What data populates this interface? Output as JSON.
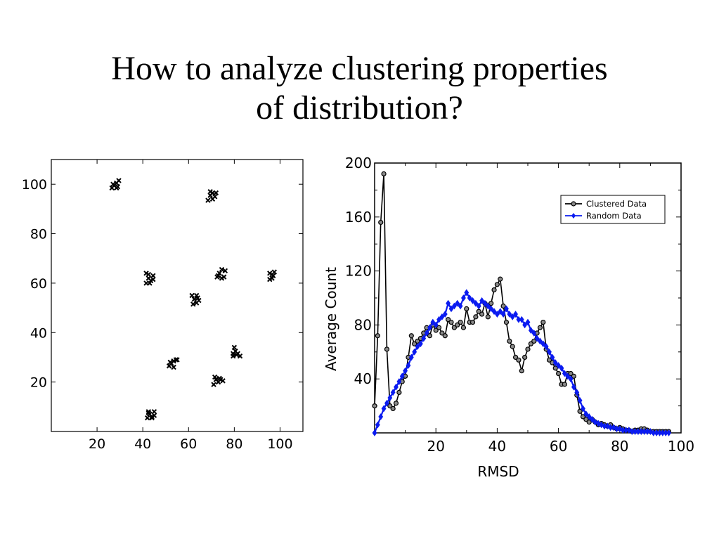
{
  "title_line1": "How to analyze clustering properties",
  "title_line2": "of distribution?",
  "chart_data": [
    {
      "type": "scatter",
      "marker": "x",
      "xlim": [
        0,
        110
      ],
      "ylim": [
        0,
        110
      ],
      "xticks": [
        20,
        40,
        60,
        80,
        100
      ],
      "yticks": [
        20,
        40,
        60,
        80,
        100
      ],
      "tick_labels_x": [
        "20",
        "40",
        "60",
        "80",
        "100"
      ],
      "tick_labels_y": [
        "20",
        "40",
        "60",
        "80",
        "100"
      ],
      "clusters": [
        {
          "center": [
            28,
            99.5
          ],
          "points": [
            [
              26.5,
              98.5
            ],
            [
              27.5,
              99.5
            ],
            [
              28.5,
              100.5
            ],
            [
              29.5,
              101.5
            ],
            [
              28.5,
              98.5
            ],
            [
              27,
              100
            ],
            [
              29,
              99
            ]
          ]
        },
        {
          "center": [
            70.5,
            95.5
          ],
          "points": [
            [
              68.5,
              93.5
            ],
            [
              69.5,
              95.5
            ],
            [
              70.5,
              96.5
            ],
            [
              71.5,
              95
            ],
            [
              70.5,
              94
            ],
            [
              72,
              96.5
            ],
            [
              69.5,
              97
            ]
          ]
        },
        {
          "center": [
            43,
            62
          ],
          "points": [
            [
              41.5,
              64
            ],
            [
              42.5,
              62
            ],
            [
              43.5,
              61
            ],
            [
              44.5,
              63
            ],
            [
              41.5,
              60
            ],
            [
              42.5,
              63.5
            ],
            [
              44.5,
              61.5
            ],
            [
              43,
              60
            ]
          ]
        },
        {
          "center": [
            74,
            64
          ],
          "points": [
            [
              72.5,
              62.5
            ],
            [
              73.5,
              64
            ],
            [
              74.5,
              65.5
            ],
            [
              75.5,
              62.5
            ],
            [
              73,
              63
            ],
            [
              76,
              65
            ],
            [
              74.5,
              62
            ]
          ]
        },
        {
          "center": [
            96.5,
            63
          ],
          "points": [
            [
              95.5,
              61.5
            ],
            [
              96.5,
              63.5
            ],
            [
              97.5,
              64.5
            ],
            [
              96.5,
              62
            ],
            [
              97,
              63
            ],
            [
              95.5,
              64
            ]
          ]
        },
        {
          "center": [
            63,
            53
          ],
          "points": [
            [
              61.5,
              55
            ],
            [
              62.5,
              53.5
            ],
            [
              63.5,
              55
            ],
            [
              64.5,
              53
            ],
            [
              62,
              51.5
            ],
            [
              63.5,
              52
            ],
            [
              64,
              54
            ]
          ]
        },
        {
          "center": [
            53,
            27.5
          ],
          "points": [
            [
              51.5,
              26.5
            ],
            [
              52.5,
              27.5
            ],
            [
              53.5,
              28.5
            ],
            [
              54.5,
              29
            ],
            [
              52,
              28
            ],
            [
              53.5,
              26
            ],
            [
              55,
              29
            ]
          ]
        },
        {
          "center": [
            80.5,
            31.5
          ],
          "points": [
            [
              79.5,
              30.5
            ],
            [
              80.5,
              32.5
            ],
            [
              81.5,
              31.5
            ],
            [
              82.5,
              30.5
            ],
            [
              80,
              34
            ],
            [
              79.5,
              31.5
            ],
            [
              81,
              31
            ]
          ]
        },
        {
          "center": [
            73,
            20.5
          ],
          "points": [
            [
              71,
              19
            ],
            [
              72,
              21
            ],
            [
              73,
              20
            ],
            [
              74,
              21
            ],
            [
              75,
              20.5
            ],
            [
              71.5,
              22
            ],
            [
              73.5,
              21.5
            ]
          ]
        },
        {
          "center": [
            43.5,
            7
          ],
          "points": [
            [
              42,
              5.5
            ],
            [
              43,
              7
            ],
            [
              44,
              6
            ],
            [
              45,
              8
            ],
            [
              42.5,
              7.5
            ],
            [
              44,
              5.5
            ],
            [
              45,
              6.5
            ],
            [
              42.5,
              8
            ]
          ]
        }
      ]
    },
    {
      "type": "line",
      "xlabel": "RMSD",
      "ylabel": "Average Count",
      "xlim": [
        0,
        100
      ],
      "ylim": [
        0,
        200
      ],
      "xticks": [
        20,
        40,
        60,
        80,
        100
      ],
      "yticks": [
        40,
        80,
        120,
        160,
        200
      ],
      "tick_labels_x": [
        "20",
        "40",
        "60",
        "80",
        "100"
      ],
      "tick_labels_y": [
        "40",
        "80",
        "120",
        "160",
        "200"
      ],
      "legend_position": "top-right",
      "series": [
        {
          "name": "Clustered Data",
          "color": "#000000",
          "marker": "circle",
          "x": [
            0,
            1,
            2,
            3,
            4,
            5,
            6,
            7,
            8,
            9,
            10,
            11,
            12,
            13,
            14,
            15,
            16,
            17,
            18,
            19,
            20,
            21,
            22,
            23,
            24,
            25,
            26,
            27,
            28,
            29,
            30,
            31,
            32,
            33,
            34,
            35,
            36,
            37,
            38,
            39,
            40,
            41,
            42,
            43,
            44,
            45,
            46,
            47,
            48,
            49,
            50,
            51,
            52,
            53,
            54,
            55,
            56,
            57,
            58,
            59,
            60,
            61,
            62,
            63,
            64,
            65,
            66,
            67,
            68,
            69,
            70,
            71,
            72,
            73,
            74,
            75,
            76,
            77,
            78,
            79,
            80,
            81,
            82,
            83,
            84,
            85,
            86,
            87,
            88,
            89,
            90,
            91,
            92,
            93,
            94,
            95,
            96
          ],
          "y": [
            20,
            72,
            156,
            192,
            62,
            20,
            18,
            22,
            30,
            38,
            42,
            56,
            72,
            66,
            68,
            70,
            74,
            78,
            72,
            80,
            76,
            78,
            74,
            72,
            84,
            82,
            78,
            80,
            82,
            78,
            92,
            82,
            82,
            86,
            90,
            88,
            96,
            86,
            96,
            106,
            110,
            114,
            94,
            82,
            68,
            64,
            56,
            54,
            46,
            56,
            62,
            66,
            68,
            74,
            78,
            82,
            62,
            54,
            52,
            48,
            44,
            36,
            36,
            44,
            44,
            42,
            28,
            16,
            12,
            10,
            8,
            10,
            8,
            6,
            7,
            6,
            5,
            6,
            4,
            3,
            4,
            3,
            2,
            2,
            1,
            2,
            2,
            3,
            3,
            2,
            1,
            1,
            1,
            1,
            1,
            1,
            1
          ]
        },
        {
          "name": "Random Data",
          "color": "#0a1bf0",
          "marker": "diamond",
          "x": [
            0,
            1,
            2,
            3,
            4,
            5,
            6,
            7,
            8,
            9,
            10,
            11,
            12,
            13,
            14,
            15,
            16,
            17,
            18,
            19,
            20,
            21,
            22,
            23,
            24,
            25,
            26,
            27,
            28,
            29,
            30,
            31,
            32,
            33,
            34,
            35,
            36,
            37,
            38,
            39,
            40,
            41,
            42,
            43,
            44,
            45,
            46,
            47,
            48,
            49,
            50,
            51,
            52,
            53,
            54,
            55,
            56,
            57,
            58,
            59,
            60,
            61,
            62,
            63,
            64,
            65,
            66,
            67,
            68,
            69,
            70,
            71,
            72,
            73,
            74,
            75,
            76,
            77,
            78,
            79,
            80,
            81,
            82,
            83,
            84,
            85,
            86,
            87,
            88,
            89,
            90,
            91,
            92,
            93,
            94,
            95,
            96
          ],
          "y": [
            0,
            6,
            12,
            18,
            22,
            26,
            30,
            34,
            38,
            42,
            46,
            50,
            56,
            60,
            64,
            66,
            70,
            74,
            78,
            82,
            80,
            84,
            86,
            88,
            96,
            92,
            94,
            96,
            94,
            100,
            104,
            100,
            98,
            96,
            94,
            98,
            96,
            94,
            92,
            90,
            88,
            90,
            88,
            92,
            88,
            86,
            88,
            84,
            84,
            80,
            82,
            76,
            74,
            70,
            68,
            66,
            64,
            60,
            56,
            52,
            50,
            48,
            44,
            42,
            40,
            34,
            30,
            24,
            18,
            14,
            12,
            10,
            8,
            7,
            6,
            5,
            5,
            4,
            4,
            3,
            3,
            2,
            2,
            2,
            1,
            1,
            1,
            1,
            1,
            1,
            1,
            0,
            0,
            0,
            0,
            0,
            0
          ]
        }
      ]
    }
  ]
}
